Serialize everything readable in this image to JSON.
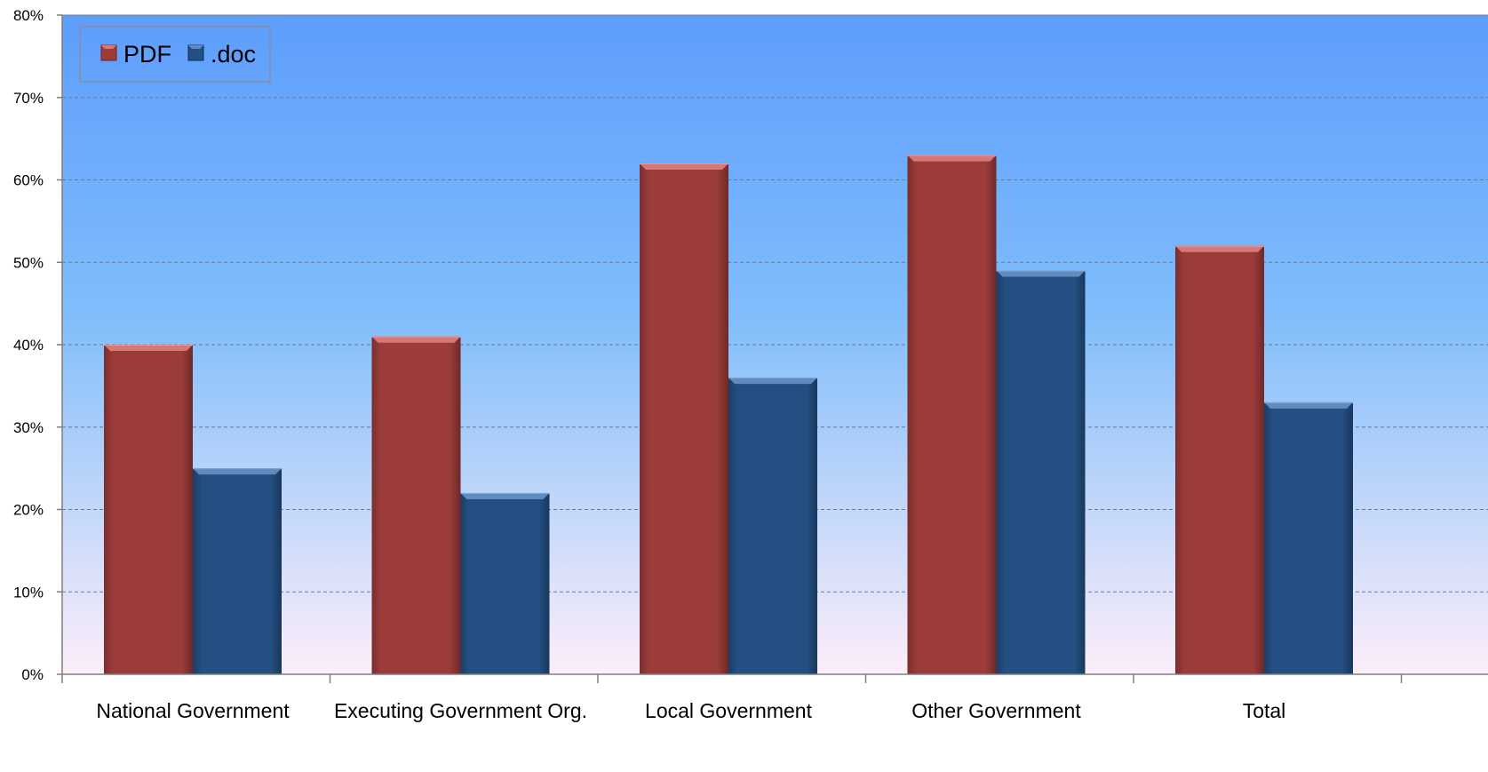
{
  "chart_data": {
    "type": "bar",
    "title": "",
    "xlabel": "",
    "ylabel": "",
    "categories": [
      "National Government",
      "Executing Government Org.",
      "Local Government",
      "Other Government",
      "Total"
    ],
    "series": [
      {
        "name": "PDF",
        "values": [
          40,
          41,
          62,
          63,
          52
        ],
        "color": "#9b3b3a"
      },
      {
        "name": ".doc",
        "values": [
          25,
          22,
          36,
          49,
          33
        ],
        "color": "#244f82"
      }
    ],
    "ylim": [
      0,
      80
    ],
    "y_ticks": [
      0,
      10,
      20,
      30,
      40,
      50,
      60,
      70,
      80
    ],
    "y_tick_labels": [
      "0%",
      "10%",
      "20%",
      "30%",
      "40%",
      "50%",
      "60%",
      "70%",
      "80%"
    ],
    "grid": true,
    "legend_position": "top-left",
    "plot_background": {
      "top_color": "#5d9dfc",
      "middle_color": "#7fbdfb",
      "bottom_color": "#fdeefa"
    }
  }
}
